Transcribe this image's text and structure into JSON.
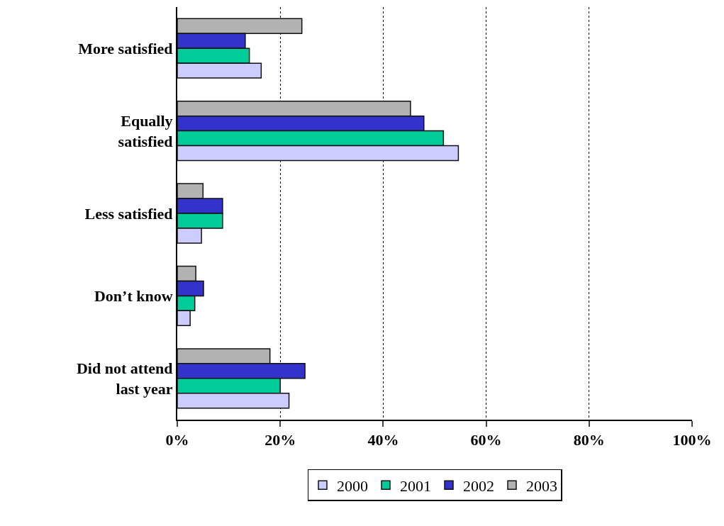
{
  "chart_data": {
    "type": "bar",
    "orientation": "horizontal",
    "categories": [
      "More satisfied",
      "Equally satisfied",
      "Less satisfied",
      "Don’t know",
      "Did not attend last year"
    ],
    "series": [
      {
        "name": "2000",
        "color": "#ccccff",
        "values": [
          16.3,
          54.6,
          4.7,
          2.5,
          21.7
        ]
      },
      {
        "name": "2001",
        "color": "#00cc99",
        "values": [
          14.0,
          51.7,
          8.8,
          3.4,
          20.0
        ]
      },
      {
        "name": "2002",
        "color": "#3333cc",
        "values": [
          13.2,
          47.9,
          8.8,
          5.1,
          24.8
        ]
      },
      {
        "name": "2003",
        "color": "#b2b2b2",
        "values": [
          24.2,
          45.3,
          5.0,
          3.6,
          18.0
        ]
      }
    ],
    "xlim": [
      0,
      100
    ],
    "xticks": [
      {
        "value": 0,
        "label": "0%"
      },
      {
        "value": 20,
        "label": "20%"
      },
      {
        "value": 40,
        "label": "40%"
      },
      {
        "value": 60,
        "label": "60%"
      },
      {
        "value": 80,
        "label": "80%"
      },
      {
        "value": 100,
        "label": "100%"
      }
    ],
    "grid": "x",
    "line_style": "dotted",
    "legend": "bottom"
  }
}
